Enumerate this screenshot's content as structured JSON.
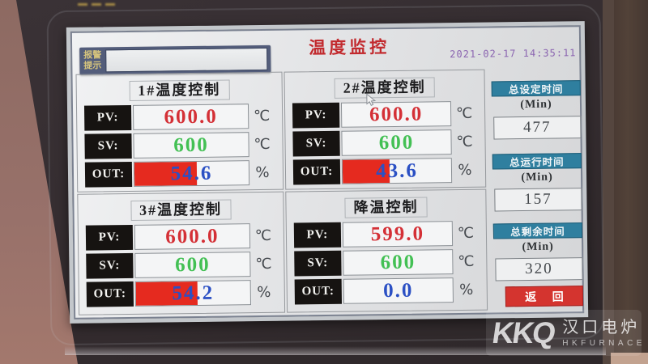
{
  "screen": {
    "title": "温度监控",
    "timestamp": "2021-02-17 14:35:11",
    "alarm": {
      "label": "报警\n提示",
      "value": ""
    },
    "row_labels": {
      "pv": "PV:",
      "sv": "SV:",
      "out": "OUT:"
    },
    "units": {
      "temp": "℃",
      "percent": "%"
    },
    "panels": [
      {
        "title": "1#温度控制",
        "pv": "600.0",
        "sv": "600",
        "out": "54.6",
        "out_pct": 54.6
      },
      {
        "title": "2#温度控制",
        "pv": "600.0",
        "sv": "600",
        "out": "43.6",
        "out_pct": 43.6
      },
      {
        "title": "3#温度控制",
        "pv": "600.0",
        "sv": "600",
        "out": "54.2",
        "out_pct": 54.2
      },
      {
        "title": "降温控制",
        "pv": "599.0",
        "sv": "600",
        "out": "0.0",
        "out_pct": 0
      }
    ],
    "sidebar": {
      "timers": [
        {
          "title": "总设定时间",
          "unit": "(Min)",
          "value": "477"
        },
        {
          "title": "总运行时间",
          "unit": "(Min)",
          "value": "157"
        },
        {
          "title": "总剩余时间",
          "unit": "(Min)",
          "value": "320"
        }
      ],
      "return_label": "返 回"
    }
  },
  "watermark": {
    "brand": "KKQ",
    "name_cn": "汉口电炉",
    "name_en": "HKFURNACE"
  },
  "colors": {
    "title_red": "#c22a2e",
    "pv_red": "#d43036",
    "sv_green": "#43c054",
    "out_blue": "#2b50c4",
    "bar_red": "#e52a1f",
    "header_teal": "#2f7f9f",
    "button_red": "#d4342f",
    "timestamp_purple": "#8a63b0",
    "alarm_bg": "#535d7b",
    "alarm_text_yellow": "#d6c47c"
  }
}
